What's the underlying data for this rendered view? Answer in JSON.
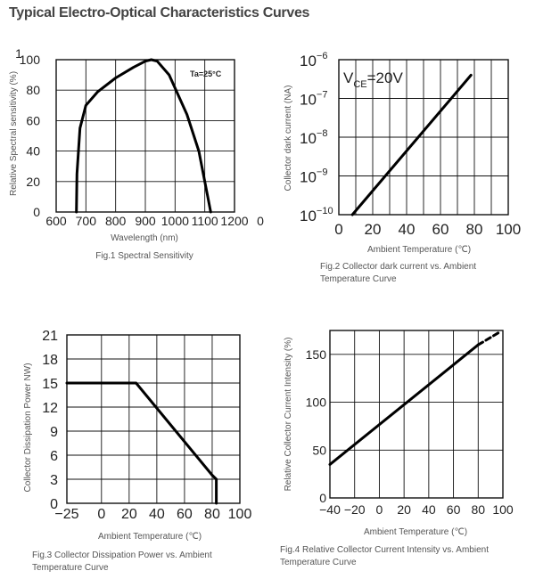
{
  "page_title": "Typical Electro-Optical Characteristics Curves",
  "colors": {
    "line": "#000000",
    "grid": "#111111",
    "text": "#333333"
  },
  "chart_data": [
    {
      "type": "line",
      "caption": "Fig.1  Spectral Sensitivity",
      "xlabel": "Wavelength  (nm)",
      "ylabel": "Relative Spectral sensitivity (%)",
      "annotation": "Ta=25°C",
      "x_ticks": [
        "600",
        "700",
        "800",
        "900",
        "1000",
        "1100",
        "1200"
      ],
      "x_stray_label": "0",
      "y_ticks": [
        "0",
        "20",
        "40",
        "60",
        "80",
        "100"
      ],
      "y_stray_label": "1",
      "xlim": [
        600,
        1200
      ],
      "ylim": [
        0,
        100
      ],
      "grid": true,
      "series": [
        {
          "x": [
            668,
            670,
            680,
            700,
            740,
            800,
            860,
            900,
            920,
            940,
            980,
            1040,
            1080,
            1110,
            1120
          ],
          "y": [
            0,
            25,
            55,
            70,
            79,
            88,
            95,
            99,
            100,
            99,
            90,
            64,
            40,
            10,
            0
          ]
        }
      ]
    },
    {
      "type": "line",
      "caption_lines": [
        "Fig.2 Collector dark current  vs. Ambient",
        "Temperature  Curve"
      ],
      "xlabel": "Ambient Temperature  (℃)",
      "ylabel": "Collector dark current  (NA)",
      "annotation": "V",
      "annotation_sub": "CE",
      "annotation_tail": "=20V",
      "x_ticks": [
        "0",
        "20",
        "40",
        "60",
        "80",
        "100"
      ],
      "y_ticks": [
        {
          "base": "10",
          "exp": "−10"
        },
        {
          "base": "10",
          "exp": "−9"
        },
        {
          "base": "10",
          "exp": "−8"
        },
        {
          "base": "10",
          "exp": "−7"
        },
        {
          "base": "10",
          "exp": "−6"
        }
      ],
      "xlim": [
        0,
        100
      ],
      "ylim_log10": [
        -10,
        -6
      ],
      "grid": true,
      "series": [
        {
          "x": [
            8,
            78
          ],
          "log10_y": [
            -10,
            -6.4
          ]
        }
      ]
    },
    {
      "type": "line",
      "caption_lines": [
        "Fig.3 Collector Dissipation Power  vs. Ambient",
        "Temperature  Curve"
      ],
      "xlabel": "Ambient Temperature  (℃)",
      "ylabel": "Collector Dissipation Power NW)",
      "x_ticks": [
        "−25",
        "0",
        "20",
        "40",
        "60",
        "80",
        "100"
      ],
      "y_ticks": [
        "0",
        "3",
        "6",
        "9",
        "12",
        "15",
        "18",
        "21"
      ],
      "xlim": [
        -25,
        100
      ],
      "ylim": [
        0,
        21
      ],
      "grid": true,
      "series": [
        {
          "x": [
            -25,
            25,
            80,
            83,
            83
          ],
          "y": [
            15,
            15,
            3.5,
            3,
            0
          ]
        }
      ]
    },
    {
      "type": "line",
      "caption_lines": [
        "Fig.4 Relative Collector Current Intensity vs. Ambient",
        "Temperature  Curve"
      ],
      "xlabel": "Ambient Temperature  (℃)",
      "ylabel": "Relative Collector Current Intensity (%)",
      "x_ticks": [
        "−40",
        "−20",
        "0",
        "20",
        "40",
        "60",
        "80",
        "100"
      ],
      "y_ticks": [
        "0",
        "50",
        "100",
        "150"
      ],
      "xlim": [
        -40,
        100
      ],
      "ylim": [
        0,
        175
      ],
      "grid": true,
      "series": [
        {
          "x": [
            -40,
            80
          ],
          "y": [
            35,
            160
          ],
          "style": "solid"
        },
        {
          "x": [
            80,
            97
          ],
          "y": [
            160,
            173
          ],
          "style": "dashed"
        }
      ]
    }
  ]
}
